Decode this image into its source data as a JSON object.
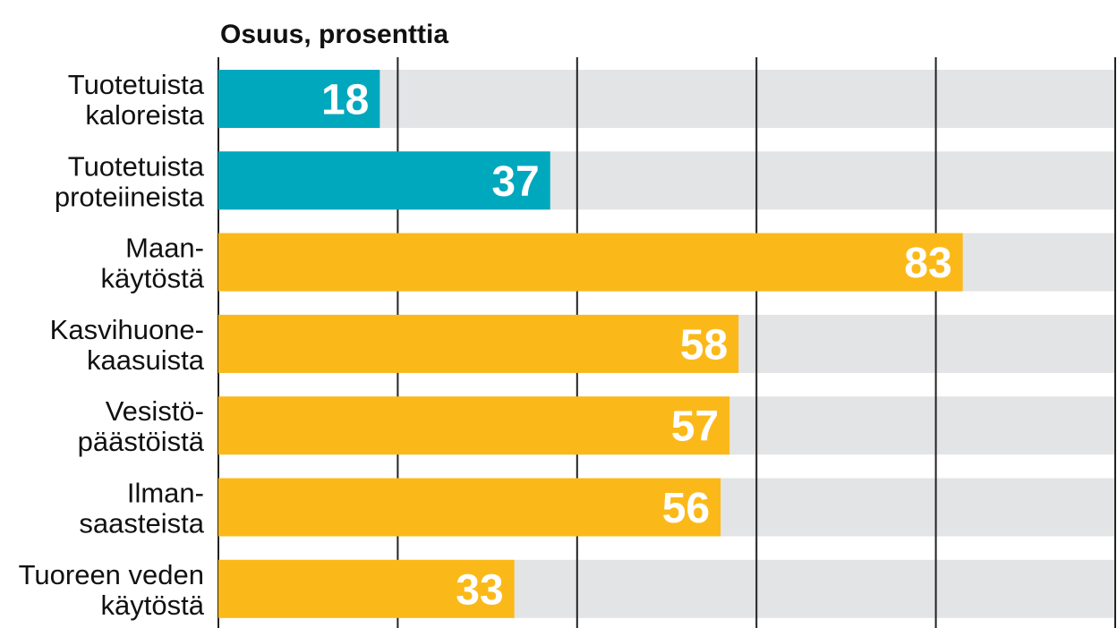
{
  "chart_data": {
    "type": "bar",
    "orientation": "horizontal",
    "title": "Osuus, prosenttia",
    "xlim": [
      0,
      100
    ],
    "grid": true,
    "gridlines": [
      0,
      20,
      40,
      60,
      80,
      100
    ],
    "categories": [
      [
        "Tuotetuista",
        "kaloreista"
      ],
      [
        "Tuotetuista",
        "proteiineista"
      ],
      [
        "Maan-",
        "käytöstä"
      ],
      [
        "Kasvihuone-",
        "kaasuista"
      ],
      [
        "Vesistö-",
        "päästöistä"
      ],
      [
        "Ilman-",
        "saasteista"
      ],
      [
        "Tuoreen veden",
        "käytöstä"
      ]
    ],
    "values": [
      18,
      37,
      83,
      58,
      57,
      56,
      33
    ],
    "bar_colors": [
      "#00a8bd",
      "#00a8bd",
      "#fbb919",
      "#fbb919",
      "#fbb919",
      "#fbb919",
      "#fbb919"
    ],
    "track_color": "#e3e4e6",
    "gridline_color": "#222222"
  }
}
